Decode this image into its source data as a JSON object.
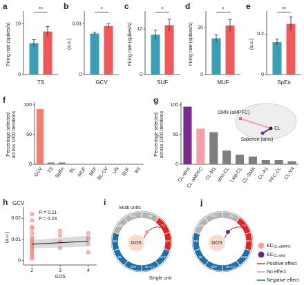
{
  "chart_data": [
    {
      "type": "bar",
      "panel": "a",
      "ylabel": "Firing rate (spikes/s)",
      "xlabel": "TS",
      "values": [
        6.2,
        8.5
      ],
      "errors": [
        0.7,
        1.0
      ],
      "colors": [
        "#3a9fb5",
        "#f0595a"
      ],
      "ylim": [
        0,
        12
      ],
      "yticks": [
        0,
        10
      ],
      "significance": "**"
    },
    {
      "type": "bar",
      "panel": "b",
      "ylabel": "(a.u.)",
      "xlabel": "GCV",
      "values": [
        0.0081,
        0.0096
      ],
      "errors": [
        0.0003,
        0.0004
      ],
      "colors": [
        "#3a9fb5",
        "#f0595a"
      ],
      "ylim": [
        0,
        0.012
      ],
      "yticks": [
        0,
        0.01
      ],
      "significance": "*"
    },
    {
      "type": "bar",
      "panel": "c",
      "ylabel": "Firing rate (spikes/s)",
      "xlabel": "SUF",
      "values": [
        10.5,
        13
      ],
      "errors": [
        1.2,
        1.6
      ],
      "colors": [
        "#3a9fb5",
        "#f0595a"
      ],
      "ylim": [
        0,
        16
      ],
      "yticks": [
        0,
        12
      ],
      "significance": "*"
    },
    {
      "type": "bar",
      "panel": "d",
      "ylabel": "Firing rate (spikes/s)",
      "xlabel": "MUF",
      "values": [
        15.5,
        21
      ],
      "errors": [
        1.5,
        2.6
      ],
      "colors": [
        "#3a9fb5",
        "#f0595a"
      ],
      "ylim": [
        0,
        26
      ],
      "yticks": [
        0,
        20
      ],
      "significance": "*"
    },
    {
      "type": "bar",
      "panel": "e",
      "ylabel": "(a.u.)",
      "xlabel": "SpEn",
      "values": [
        0.16,
        0.25
      ],
      "errors": [
        0.015,
        0.035
      ],
      "colors": [
        "#3a9fb5",
        "#f0595a"
      ],
      "ylim": [
        0,
        0.3
      ],
      "yticks": [
        0,
        0.2
      ],
      "significance": "**"
    },
    {
      "type": "bar",
      "panel": "f",
      "ylabel": [
        "Percentage selected",
        "across 1000 iterations"
      ],
      "categories": [
        "GCV",
        "TS",
        "SpEn",
        "BL",
        "MUF",
        "BEF",
        "BL-CV",
        "UN",
        "SUF",
        "BS"
      ],
      "values": [
        93,
        3,
        3,
        0,
        0,
        0,
        0,
        0,
        0,
        0
      ],
      "colors": [
        "#f47c6e",
        "#8c8c8c",
        "#8c8c8c",
        "#8c8c8c",
        "#8c8c8c",
        "#8c8c8c",
        "#8c8c8c",
        "#8c8c8c",
        "#8c8c8c",
        "#8c8c8c"
      ],
      "ylim": [
        0,
        100
      ],
      "yticks": [
        0,
        50,
        100
      ]
    },
    {
      "type": "bar",
      "panel": "g",
      "ylabel": [
        "Percentage selected",
        "across 1000 iterations"
      ],
      "categories": [
        "CL-aIns",
        "CL-aMPFC",
        "CL-M1",
        "aIns-CL",
        "Latp-CL",
        "CL-SMA",
        "CL-A1",
        "PFC-CL",
        "CL-V4"
      ],
      "values": [
        97,
        60,
        54,
        23,
        16,
        13,
        7,
        7,
        5
      ],
      "colors": [
        "#7b2d8e",
        "#f4a0a8",
        "#7f7f7f",
        "#7f7f7f",
        "#7f7f7f",
        "#7f7f7f",
        "#7f7f7f",
        "#7f7f7f",
        "#7f7f7f"
      ],
      "ylim": [
        0,
        100
      ],
      "yticks": [
        0,
        50,
        100
      ],
      "annotations": [
        "DMN (aMPFC)",
        "CL",
        "Salience (aIns)"
      ]
    },
    {
      "type": "scatter",
      "panel": "h",
      "title": "GCV",
      "ylabel": "(a.u.)",
      "xlabel": "GOS",
      "annotations": [
        "R = 0.11",
        "P = 0.23"
      ],
      "x": [
        2,
        2,
        2,
        2,
        2,
        2,
        2,
        2,
        2,
        2,
        2,
        2,
        2,
        2,
        2,
        2,
        3,
        3,
        3,
        3,
        4,
        4,
        4,
        4,
        4
      ],
      "y": [
        0.001,
        0.002,
        0.003,
        0.004,
        0.005,
        0.006,
        0.007,
        0.008,
        0.009,
        0.01,
        0.011,
        0.013,
        0.015,
        0.016,
        0.019,
        0.022,
        0.006,
        0.009,
        0.012,
        0.014,
        0.004,
        0.008,
        0.01,
        0.011,
        0.013
      ],
      "color": "#f07070",
      "fit": {
        "x": [
          2,
          4
        ],
        "y": [
          0.0078,
          0.0092
        ]
      },
      "xlim": [
        1.7,
        4.3
      ],
      "xticks": [
        2,
        3,
        4
      ],
      "ylim": [
        -0.002,
        0.024
      ],
      "yticks": [
        0,
        0.01,
        0.02
      ]
    }
  ],
  "diagram": {
    "panels": [
      "i",
      "j"
    ],
    "top_label": "Multi units",
    "bottom_label": "Single unit",
    "center": "GOS",
    "segments": [
      "SpEn",
      "MUF",
      "UN",
      "TS",
      "GCV",
      "SUF",
      "BL-CV",
      "BEF",
      "BL",
      "BS"
    ],
    "legend": [
      {
        "symbol": "EC",
        "sub": "CL-aMPFC"
      },
      {
        "symbol": "EC",
        "sub": "CL-aIns"
      },
      "Positive effect",
      "No effect",
      "Negative effect"
    ]
  }
}
